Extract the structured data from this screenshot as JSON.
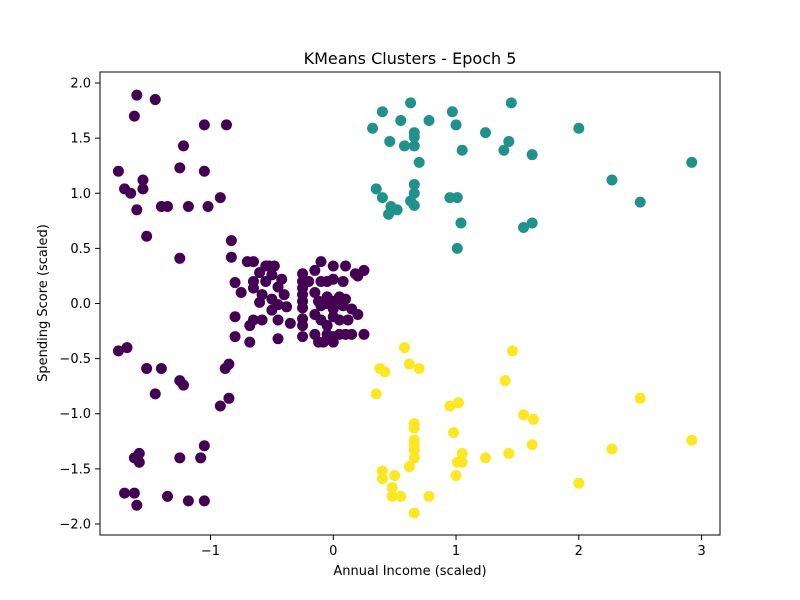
{
  "chart_data": {
    "type": "scatter",
    "title": "KMeans Clusters - Epoch 5",
    "xlabel": "Annual Income (scaled)",
    "ylabel": "Spending Score (scaled)",
    "xlim": [
      -1.9,
      3.15
    ],
    "ylim": [
      -2.1,
      2.1
    ],
    "xticks": [
      {
        "value": -1,
        "label": "−1"
      },
      {
        "value": 0,
        "label": "0"
      },
      {
        "value": 1,
        "label": "1"
      },
      {
        "value": 2,
        "label": "2"
      },
      {
        "value": 3,
        "label": "3"
      }
    ],
    "yticks": [
      {
        "value": -2.0,
        "label": "−2.0"
      },
      {
        "value": -1.5,
        "label": "−1.5"
      },
      {
        "value": -1.0,
        "label": "−1.0"
      },
      {
        "value": -0.5,
        "label": "−0.5"
      },
      {
        "value": 0.0,
        "label": "0.0"
      },
      {
        "value": 0.5,
        "label": "0.5"
      },
      {
        "value": 1.0,
        "label": "1.0"
      },
      {
        "value": 1.5,
        "label": "1.5"
      },
      {
        "value": 2.0,
        "label": "2.0"
      }
    ],
    "grid": false,
    "series": [
      {
        "color": "#440154",
        "points": [
          [
            -1.6,
            1.89
          ],
          [
            -1.45,
            1.85
          ],
          [
            -1.62,
            1.7
          ],
          [
            -1.05,
            1.62
          ],
          [
            -0.87,
            1.62
          ],
          [
            -1.22,
            1.43
          ],
          [
            -1.75,
            1.2
          ],
          [
            -1.55,
            1.12
          ],
          [
            -1.25,
            1.23
          ],
          [
            -1.05,
            1.2
          ],
          [
            -1.7,
            1.04
          ],
          [
            -1.65,
            1.0
          ],
          [
            -1.55,
            1.04
          ],
          [
            -0.92,
            0.96
          ],
          [
            -1.4,
            0.88
          ],
          [
            -1.35,
            0.88
          ],
          [
            -1.18,
            0.88
          ],
          [
            -1.02,
            0.88
          ],
          [
            -1.6,
            0.85
          ],
          [
            -1.52,
            0.61
          ],
          [
            -0.83,
            0.57
          ],
          [
            -1.25,
            0.41
          ],
          [
            -0.83,
            0.42
          ],
          [
            -0.7,
            0.38
          ],
          [
            -0.65,
            0.38
          ],
          [
            -0.55,
            0.34
          ],
          [
            -0.52,
            0.34
          ],
          [
            -0.48,
            0.34
          ],
          [
            -0.6,
            0.28
          ],
          [
            -0.5,
            0.26
          ],
          [
            -0.42,
            0.22
          ],
          [
            -0.8,
            0.19
          ],
          [
            -0.65,
            0.2
          ],
          [
            -0.55,
            0.2
          ],
          [
            -0.45,
            0.15
          ],
          [
            -0.65,
            0.14
          ],
          [
            -0.75,
            0.1
          ],
          [
            -0.58,
            0.08
          ],
          [
            -0.4,
            0.08
          ],
          [
            -0.5,
            0.04
          ],
          [
            -0.6,
            0.01
          ],
          [
            -0.45,
            -0.01
          ],
          [
            -0.38,
            -0.03
          ],
          [
            -0.5,
            -0.06
          ],
          [
            -0.8,
            -0.12
          ],
          [
            -0.65,
            -0.15
          ],
          [
            -0.58,
            -0.15
          ],
          [
            -0.45,
            -0.15
          ],
          [
            -0.35,
            -0.18
          ],
          [
            -0.68,
            -0.2
          ],
          [
            -0.8,
            -0.3
          ],
          [
            -0.68,
            -0.35
          ],
          [
            -0.45,
            -0.32
          ],
          [
            -0.25,
            0.27
          ],
          [
            -0.25,
            0.2
          ],
          [
            -0.25,
            0.14
          ],
          [
            -0.25,
            0.08
          ],
          [
            -0.25,
            0.02
          ],
          [
            -0.25,
            -0.04
          ],
          [
            -0.25,
            -0.14
          ],
          [
            -0.25,
            -0.2
          ],
          [
            -0.25,
            -0.3
          ],
          [
            -0.15,
            0.3
          ],
          [
            -0.1,
            0.38
          ],
          [
            -0.2,
            0.2
          ],
          [
            -0.1,
            0.2
          ],
          [
            -0.05,
            0.2
          ],
          [
            -0.15,
            0.1
          ],
          [
            0.0,
            0.34
          ],
          [
            0.1,
            0.34
          ],
          [
            0.0,
            0.22
          ],
          [
            0.08,
            0.2
          ],
          [
            0.18,
            0.27
          ],
          [
            0.2,
            0.25
          ],
          [
            0.25,
            0.3
          ],
          [
            -0.12,
            0.02
          ],
          [
            -0.05,
            0.06
          ],
          [
            0.0,
            0.02
          ],
          [
            0.05,
            0.06
          ],
          [
            0.1,
            0.04
          ],
          [
            -0.05,
            0.0
          ],
          [
            -0.1,
            -0.02
          ],
          [
            0.0,
            -0.05
          ],
          [
            0.08,
            -0.02
          ],
          [
            0.15,
            -0.05
          ],
          [
            -0.1,
            -0.15
          ],
          [
            0.0,
            -0.12
          ],
          [
            0.05,
            -0.15
          ],
          [
            0.12,
            -0.15
          ],
          [
            0.2,
            -0.1
          ],
          [
            -0.15,
            -0.28
          ],
          [
            -0.05,
            -0.28
          ],
          [
            0.0,
            -0.3
          ],
          [
            0.05,
            -0.28
          ],
          [
            0.1,
            -0.28
          ],
          [
            0.15,
            -0.28
          ],
          [
            0.25,
            -0.28
          ],
          [
            -0.08,
            -0.35
          ],
          [
            0.0,
            -0.35
          ],
          [
            -0.12,
            -0.35
          ],
          [
            -0.15,
            -0.1
          ],
          [
            -0.05,
            -0.2
          ],
          [
            -1.75,
            -0.43
          ],
          [
            -1.68,
            -0.4
          ],
          [
            -1.52,
            -0.59
          ],
          [
            -1.4,
            -0.59
          ],
          [
            -1.25,
            -0.7
          ],
          [
            -1.22,
            -0.74
          ],
          [
            -0.85,
            -0.55
          ],
          [
            -0.88,
            -0.59
          ],
          [
            -1.45,
            -0.82
          ],
          [
            -0.85,
            -0.86
          ],
          [
            -0.92,
            -0.93
          ],
          [
            -1.05,
            -1.29
          ],
          [
            -1.58,
            -1.36
          ],
          [
            -1.62,
            -1.4
          ],
          [
            -1.58,
            -1.44
          ],
          [
            -1.25,
            -1.4
          ],
          [
            -1.08,
            -1.4
          ],
          [
            -1.7,
            -1.72
          ],
          [
            -1.62,
            -1.72
          ],
          [
            -1.35,
            -1.75
          ],
          [
            -1.18,
            -1.79
          ],
          [
            -1.05,
            -1.79
          ],
          [
            -1.6,
            -1.83
          ]
        ]
      },
      {
        "color": "#21918c",
        "points": [
          [
            0.63,
            1.82
          ],
          [
            1.45,
            1.82
          ],
          [
            0.4,
            1.74
          ],
          [
            0.97,
            1.74
          ],
          [
            0.55,
            1.66
          ],
          [
            0.78,
            1.66
          ],
          [
            0.32,
            1.59
          ],
          [
            1.0,
            1.62
          ],
          [
            2.0,
            1.59
          ],
          [
            0.66,
            1.55
          ],
          [
            1.24,
            1.55
          ],
          [
            0.66,
            1.51
          ],
          [
            0.46,
            1.47
          ],
          [
            1.43,
            1.47
          ],
          [
            0.66,
            1.43
          ],
          [
            0.58,
            1.43
          ],
          [
            1.05,
            1.39
          ],
          [
            1.39,
            1.39
          ],
          [
            1.62,
            1.35
          ],
          [
            0.7,
            1.28
          ],
          [
            2.92,
            1.28
          ],
          [
            2.27,
            1.12
          ],
          [
            0.66,
            1.08
          ],
          [
            0.35,
            1.04
          ],
          [
            0.66,
            1.0
          ],
          [
            0.4,
            0.96
          ],
          [
            0.95,
            0.96
          ],
          [
            1.01,
            0.96
          ],
          [
            2.5,
            0.92
          ],
          [
            0.63,
            0.93
          ],
          [
            0.47,
            0.88
          ],
          [
            0.66,
            0.89
          ],
          [
            0.52,
            0.85
          ],
          [
            0.45,
            0.81
          ],
          [
            1.04,
            0.73
          ],
          [
            1.62,
            0.73
          ],
          [
            1.55,
            0.69
          ],
          [
            1.01,
            0.5
          ]
        ]
      },
      {
        "color": "#fde725",
        "points": [
          [
            0.58,
            -0.4
          ],
          [
            1.46,
            -0.43
          ],
          [
            0.62,
            -0.55
          ],
          [
            0.7,
            -0.59
          ],
          [
            0.38,
            -0.59
          ],
          [
            0.42,
            -0.62
          ],
          [
            1.4,
            -0.7
          ],
          [
            0.35,
            -0.82
          ],
          [
            2.5,
            -0.86
          ],
          [
            1.02,
            -0.9
          ],
          [
            0.95,
            -0.93
          ],
          [
            1.55,
            -1.01
          ],
          [
            1.63,
            -1.05
          ],
          [
            0.66,
            -1.09
          ],
          [
            0.66,
            -1.13
          ],
          [
            0.98,
            -1.17
          ],
          [
            0.66,
            -1.24
          ],
          [
            2.92,
            -1.24
          ],
          [
            1.62,
            -1.28
          ],
          [
            0.66,
            -1.28
          ],
          [
            0.66,
            -1.33
          ],
          [
            2.27,
            -1.32
          ],
          [
            1.05,
            -1.36
          ],
          [
            1.43,
            -1.36
          ],
          [
            1.24,
            -1.4
          ],
          [
            0.66,
            -1.4
          ],
          [
            1.01,
            -1.44
          ],
          [
            1.05,
            -1.44
          ],
          [
            0.62,
            -1.48
          ],
          [
            0.4,
            -1.52
          ],
          [
            0.5,
            -1.56
          ],
          [
            1.0,
            -1.56
          ],
          [
            0.4,
            -1.59
          ],
          [
            2.0,
            -1.63
          ],
          [
            0.48,
            -1.67
          ],
          [
            0.48,
            -1.75
          ],
          [
            0.55,
            -1.75
          ],
          [
            0.78,
            -1.75
          ],
          [
            0.66,
            -1.9
          ]
        ]
      }
    ]
  }
}
